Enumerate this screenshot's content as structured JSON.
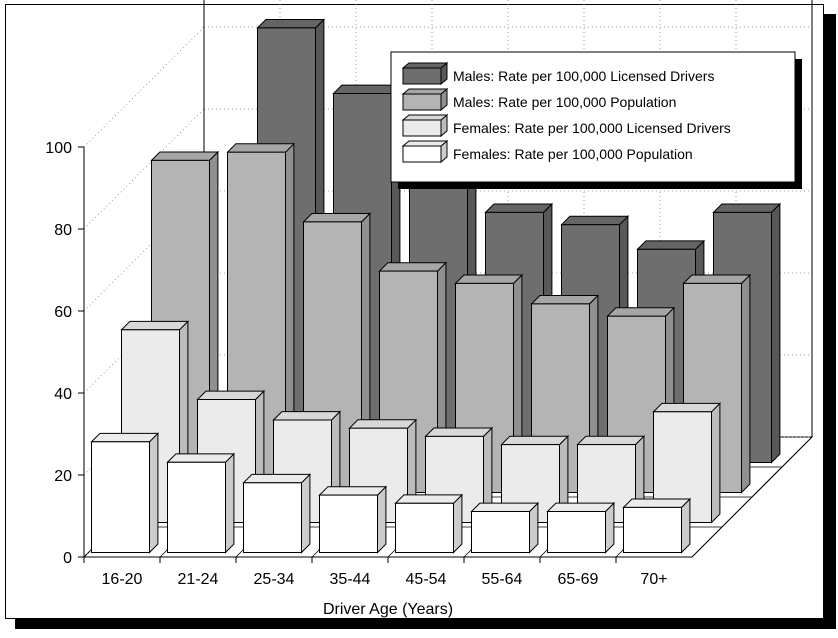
{
  "chart_data": {
    "type": "bar",
    "categories": [
      "16-20",
      "21-24",
      "25-34",
      "35-44",
      "45-54",
      "55-64",
      "65-69",
      "70+"
    ],
    "series": [
      {
        "name": "Males: Rate per 100,000 Licensed Drivers",
        "values": [
          null,
          106,
          90,
          71,
          61,
          58,
          52,
          61
        ],
        "color": "#6e6e6e"
      },
      {
        "name": "Males: Rate per 100,000 Population",
        "values": [
          81,
          83,
          66,
          54,
          51,
          46,
          43,
          51
        ],
        "color": "#b4b4b4"
      },
      {
        "name": "Females: Rate per 100,000 Licensed Drivers",
        "values": [
          47,
          30,
          25,
          23,
          21,
          19,
          19,
          27
        ],
        "color": "#ebebeb"
      },
      {
        "name": "Females: Rate per 100,000 Population",
        "values": [
          27,
          22,
          17,
          14,
          12,
          10,
          10,
          11
        ],
        "color": "#ffffff"
      }
    ],
    "xlabel": "Driver Age (Years)",
    "ylabel": "",
    "ylim": [
      0,
      120
    ],
    "yticks": [
      "0",
      "20",
      "40",
      "60",
      "80",
      "100"
    ],
    "legend_position": "top-right",
    "grid": true
  }
}
